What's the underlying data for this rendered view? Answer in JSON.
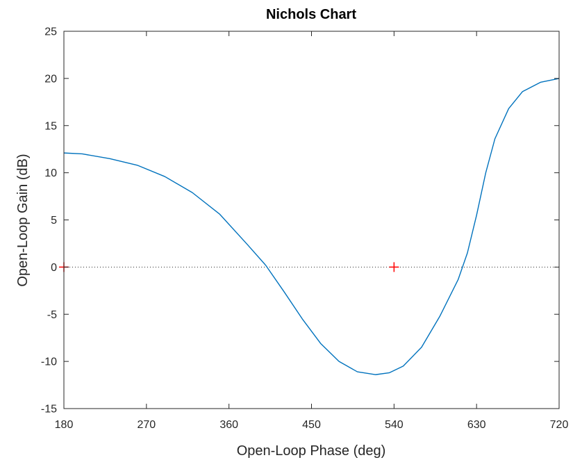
{
  "chart_data": {
    "type": "line",
    "title": "Nichols Chart",
    "xlabel": "Open-Loop Phase (deg)",
    "ylabel": "Open-Loop Gain (dB)",
    "xlim": [
      180,
      720
    ],
    "ylim": [
      -15,
      25
    ],
    "xticks": [
      180,
      270,
      360,
      450,
      540,
      630,
      720
    ],
    "yticks": [
      -15,
      -10,
      -5,
      0,
      5,
      10,
      15,
      20,
      25
    ],
    "grid": false,
    "legend": "none",
    "reference_lines": [
      {
        "y": 0,
        "style": "dotted"
      }
    ],
    "critical_points": [
      {
        "x": 180,
        "y": 0
      },
      {
        "x": 540,
        "y": 0
      }
    ],
    "series": [
      {
        "x": [
          180,
          200,
          230,
          260,
          290,
          320,
          350,
          380,
          400,
          420,
          440,
          460,
          480,
          500,
          520,
          535,
          550,
          570,
          590,
          610,
          620,
          630,
          640,
          650,
          665,
          680,
          700,
          720
        ],
        "values": [
          12.1,
          12.0,
          11.5,
          10.8,
          9.6,
          7.9,
          5.6,
          2.4,
          0.2,
          -2.6,
          -5.5,
          -8.1,
          -10.0,
          -11.1,
          -11.4,
          -11.2,
          -10.5,
          -8.5,
          -5.2,
          -1.3,
          1.5,
          5.5,
          10.0,
          13.6,
          16.8,
          18.6,
          19.6,
          20.0
        ],
        "color": "#0072BD"
      }
    ],
    "colors": {
      "axis": "#262626",
      "series": "#0072BD",
      "critical_point": "#FF0000",
      "reference_line": "#262626"
    }
  }
}
